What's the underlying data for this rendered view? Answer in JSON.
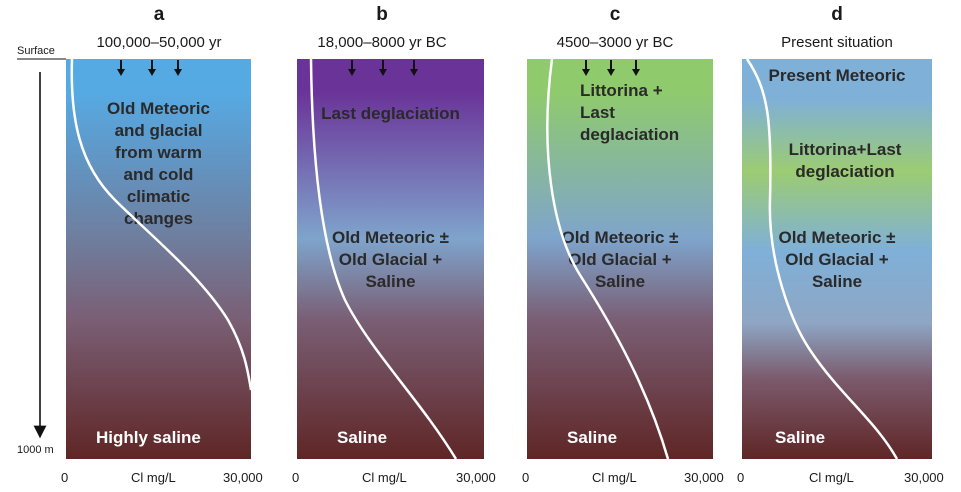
{
  "axis": {
    "surface_label": "Surface",
    "depth_label": "1000 m",
    "x_min_label": "0",
    "x_unit_label": "Cl mg/L",
    "x_max_label": "30,000"
  },
  "panels": [
    {
      "letter": "a",
      "period": "100,000–50,000 yr",
      "colors": {
        "top": "#56aae4",
        "mid": "#6f7e9e",
        "bottom": "#5f2626"
      },
      "zones": [
        {
          "lines": [
            "Old Meteoric",
            "and glacial",
            "from warm",
            "and cold",
            "climatic",
            "changes"
          ]
        }
      ],
      "bottom_label": "Highly saline",
      "arrows": 3
    },
    {
      "letter": "b",
      "period": "18,000–8000 yr BC",
      "colors": {
        "top": "#6a3398",
        "mid": "#7fa4cc",
        "bottom": "#5f2626"
      },
      "zones": [
        {
          "lines": [
            "Last deglaciation"
          ]
        },
        {
          "lines": [
            "Old Meteoric ±",
            "Old Glacial +",
            "Saline"
          ]
        }
      ],
      "bottom_label": "Saline",
      "arrows": 3
    },
    {
      "letter": "c",
      "period": "4500–3000 yr BC",
      "colors": {
        "top": "#8fcb6c",
        "mid": "#7fa4cc",
        "bottom": "#5f2626"
      },
      "zones": [
        {
          "lines": [
            "Littorina +",
            "Last",
            "deglaciation"
          ]
        },
        {
          "lines": [
            "Old Meteoric ±",
            "Old Glacial +",
            "Saline"
          ]
        }
      ],
      "bottom_label": "Saline",
      "arrows": 3
    },
    {
      "letter": "d",
      "period": "Present situation",
      "colors": {
        "top": "#7fb0d8",
        "mid": "#9ccc72",
        "bottom": "#5f2626"
      },
      "zones": [
        {
          "lines": [
            "Present Meteoric"
          ]
        },
        {
          "lines": [
            "Littorina+Last",
            "deglaciation"
          ]
        },
        {
          "lines": [
            "Old Meteoric ±",
            "Old Glacial +",
            "Saline"
          ]
        }
      ],
      "bottom_label": "Saline",
      "arrows": 0
    }
  ]
}
